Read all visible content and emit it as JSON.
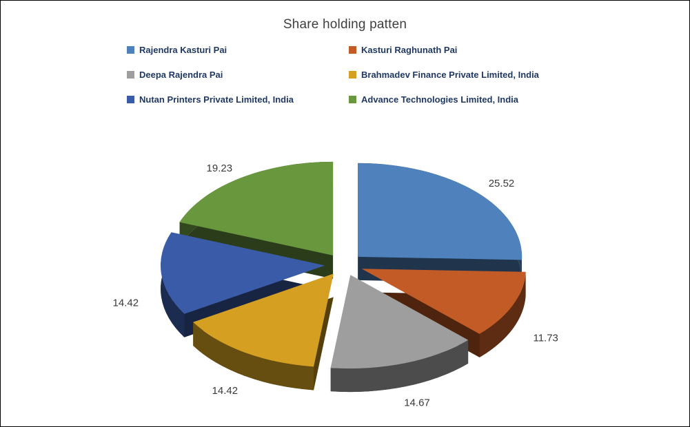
{
  "chart_data": {
    "type": "pie",
    "style": "3d-exploded",
    "title": "Share holding patten",
    "legend_position": "top",
    "labels_format": "value-2-decimals",
    "series": [
      {
        "label": "Rajendra Kasturi Pai",
        "value": 25.52,
        "color": "#4F81BD"
      },
      {
        "label": "Kasturi Raghunath Pai",
        "value": 11.73,
        "color": "#C25B26"
      },
      {
        "label": "Deepa Rajendra Pai",
        "value": 14.67,
        "color": "#9E9E9E"
      },
      {
        "label": "Brahmadev Finance Private Limited, India",
        "value": 14.42,
        "color": "#D5A021"
      },
      {
        "label": "Nutan Printers Private Limited, India",
        "value": 14.42,
        "color": "#3A5CA8"
      },
      {
        "label": "Advance Technologies Limited, India",
        "value": 19.23,
        "color": "#69973E"
      }
    ]
  }
}
